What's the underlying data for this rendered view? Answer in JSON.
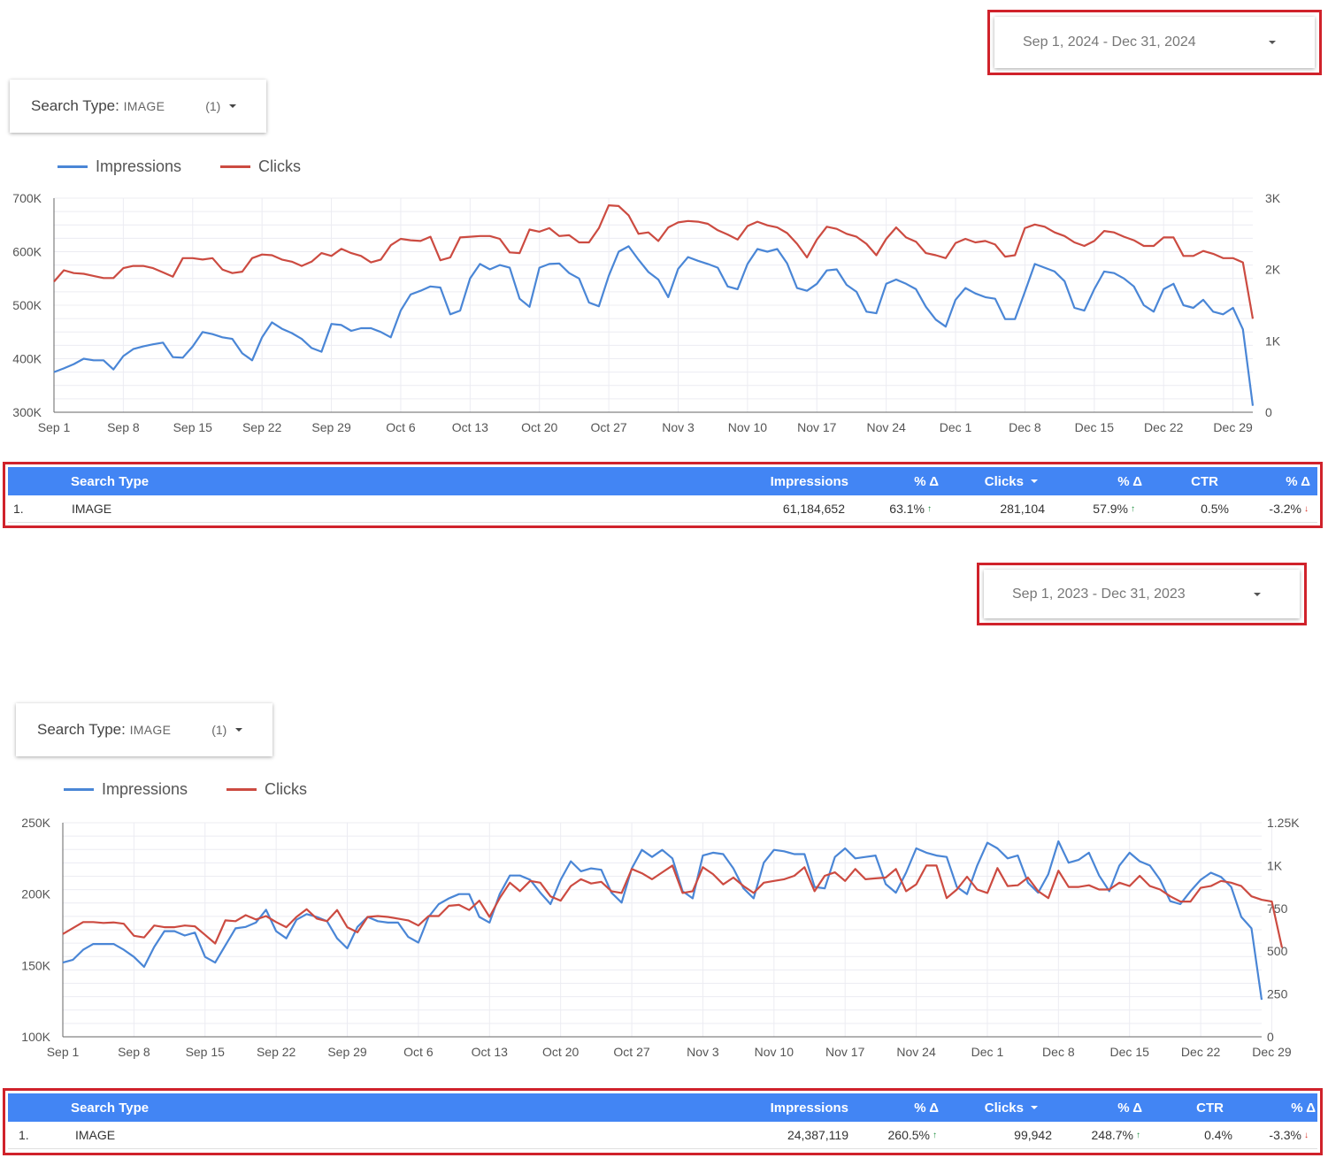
{
  "panels": [
    {
      "date_range": "Sep 1, 2024 - Dec 31, 2024",
      "filter": {
        "label": "Search Type",
        "value": "IMAGE",
        "count": "(1)"
      },
      "legend": [
        {
          "name": "Impressions",
          "color": "#4a86d6"
        },
        {
          "name": "Clicks",
          "color": "#cc4b41"
        }
      ],
      "table": {
        "headers": {
          "search_type": "Search Type",
          "impressions": "Impressions",
          "imp_delta": "% Δ",
          "clicks": "Clicks",
          "clicks_delta": "% Δ",
          "ctr": "CTR",
          "ctr_delta": "% Δ"
        },
        "row": {
          "index": "1.",
          "search_type": "IMAGE",
          "impressions": "61,184,652",
          "imp_delta": "63.1%",
          "clicks": "281,104",
          "clicks_delta": "57.9%",
          "ctr": "0.5%",
          "ctr_delta": "-3.2%"
        }
      }
    },
    {
      "date_range": "Sep 1, 2023 - Dec 31, 2023",
      "filter": {
        "label": "Search Type",
        "value": "IMAGE",
        "count": "(1)"
      },
      "legend": [
        {
          "name": "Impressions",
          "color": "#4a86d6"
        },
        {
          "name": "Clicks",
          "color": "#cc4b41"
        }
      ],
      "table": {
        "headers": {
          "search_type": "Search Type",
          "impressions": "Impressions",
          "imp_delta": "% Δ",
          "clicks": "Clicks",
          "clicks_delta": "% Δ",
          "ctr": "CTR",
          "ctr_delta": "% Δ"
        },
        "row": {
          "index": "1.",
          "search_type": "IMAGE",
          "impressions": "24,387,119",
          "imp_delta": "260.5%",
          "clicks": "99,942",
          "clicks_delta": "248.7%",
          "ctr": "0.4%",
          "ctr_delta": "-3.3%"
        }
      }
    }
  ],
  "chart_data": [
    {
      "type": "line",
      "title": "",
      "x_ticks": [
        "Sep 1",
        "Sep 8",
        "Sep 15",
        "Sep 22",
        "Sep 29",
        "Oct 6",
        "Oct 13",
        "Oct 20",
        "Oct 27",
        "Nov 3",
        "Nov 10",
        "Nov 17",
        "Nov 24",
        "Dec 1",
        "Dec 8",
        "Dec 15",
        "Dec 22",
        "Dec 29"
      ],
      "y_left": {
        "min": 300000,
        "max": 700000,
        "ticks": [
          300000,
          400000,
          500000,
          600000,
          700000
        ],
        "tick_labels": [
          "300K",
          "400K",
          "500K",
          "600K",
          "700K"
        ]
      },
      "y_right": {
        "min": 0,
        "max": 3000,
        "ticks": [
          0,
          1000,
          2000,
          3000
        ],
        "tick_labels": [
          "0",
          "1K",
          "2K",
          "3K"
        ]
      },
      "series": [
        {
          "name": "Impressions",
          "axis": "left",
          "color": "#4a86d6",
          "values": [
            375000,
            382000,
            390000,
            400000,
            397000,
            397000,
            380000,
            405000,
            418000,
            423000,
            427000,
            430000,
            403000,
            402000,
            423000,
            450000,
            446000,
            440000,
            437000,
            410000,
            397000,
            440000,
            468000,
            456000,
            448000,
            437000,
            420000,
            413000,
            465000,
            463000,
            452000,
            457000,
            457000,
            450000,
            440000,
            490000,
            520000,
            527000,
            535000,
            533000,
            483000,
            490000,
            550000,
            577000,
            567000,
            575000,
            570000,
            512000,
            497000,
            570000,
            577000,
            578000,
            560000,
            550000,
            505000,
            498000,
            555000,
            600000,
            610000,
            585000,
            562000,
            548000,
            515000,
            568000,
            590000,
            583000,
            577000,
            570000,
            535000,
            530000,
            577000,
            605000,
            600000,
            605000,
            578000,
            532000,
            527000,
            540000,
            565000,
            567000,
            538000,
            525000,
            488000,
            485000,
            540000,
            548000,
            540000,
            530000,
            497000,
            473000,
            460000,
            510000,
            532000,
            522000,
            515000,
            512000,
            474000,
            474000,
            525000,
            577000,
            570000,
            563000,
            545000,
            495000,
            490000,
            530000,
            563000,
            560000,
            550000,
            535000,
            500000,
            488000,
            530000,
            540000,
            500000,
            495000,
            510000,
            488000,
            483000,
            495000,
            455000,
            312000
          ]
        },
        {
          "name": "Clicks",
          "axis": "right",
          "color": "#cc4b41",
          "values": [
            1830,
            1990,
            1950,
            1940,
            1910,
            1880,
            1880,
            2020,
            2050,
            2050,
            2020,
            1960,
            1900,
            2160,
            2160,
            2140,
            2160,
            2000,
            1950,
            1970,
            2160,
            2210,
            2200,
            2140,
            2110,
            2050,
            2110,
            2230,
            2190,
            2290,
            2230,
            2190,
            2100,
            2140,
            2340,
            2430,
            2410,
            2400,
            2460,
            2130,
            2170,
            2450,
            2460,
            2470,
            2470,
            2430,
            2240,
            2230,
            2560,
            2530,
            2580,
            2470,
            2480,
            2380,
            2380,
            2580,
            2900,
            2890,
            2760,
            2500,
            2520,
            2400,
            2590,
            2660,
            2680,
            2670,
            2640,
            2550,
            2490,
            2420,
            2610,
            2670,
            2620,
            2590,
            2510,
            2360,
            2170,
            2420,
            2600,
            2570,
            2500,
            2460,
            2360,
            2200,
            2430,
            2590,
            2450,
            2390,
            2230,
            2200,
            2160,
            2370,
            2430,
            2380,
            2400,
            2350,
            2180,
            2200,
            2580,
            2630,
            2600,
            2520,
            2470,
            2380,
            2330,
            2400,
            2540,
            2520,
            2460,
            2410,
            2330,
            2330,
            2450,
            2450,
            2190,
            2190,
            2260,
            2220,
            2160,
            2160,
            2100,
            1310
          ]
        }
      ]
    },
    {
      "type": "line",
      "title": "",
      "x_ticks": [
        "Sep 1",
        "Sep 8",
        "Sep 15",
        "Sep 22",
        "Sep 29",
        "Oct 6",
        "Oct 13",
        "Oct 20",
        "Oct 27",
        "Nov 3",
        "Nov 10",
        "Nov 17",
        "Nov 24",
        "Dec 1",
        "Dec 8",
        "Dec 15",
        "Dec 22",
        "Dec 29"
      ],
      "y_left": {
        "min": 100000,
        "max": 250000,
        "ticks": [
          100000,
          150000,
          200000,
          250000
        ],
        "tick_labels": [
          "100K",
          "150K",
          "200K",
          "250K"
        ]
      },
      "y_right": {
        "min": 0,
        "max": 1250,
        "ticks": [
          0,
          250,
          500,
          750,
          1000,
          1250
        ],
        "tick_labels": [
          "0",
          "250",
          "500",
          "750",
          "1K",
          "1.25K"
        ]
      },
      "series": [
        {
          "name": "Impressions",
          "axis": "left",
          "color": "#4a86d6",
          "values": [
            152000,
            154000,
            161000,
            165000,
            165000,
            165000,
            161000,
            156000,
            149000,
            163000,
            174000,
            174000,
            171000,
            173000,
            156000,
            152000,
            164000,
            176000,
            177000,
            180000,
            189000,
            174000,
            169000,
            182000,
            186000,
            184000,
            181000,
            169000,
            162000,
            177000,
            184000,
            181000,
            180000,
            180000,
            170000,
            166000,
            184000,
            193000,
            197000,
            200000,
            200000,
            184000,
            180000,
            200000,
            213000,
            213000,
            210000,
            201000,
            193000,
            210000,
            223000,
            216000,
            218000,
            217000,
            201000,
            194000,
            218000,
            231000,
            226000,
            231000,
            225000,
            202000,
            197000,
            227000,
            229000,
            228000,
            218000,
            204000,
            197000,
            222000,
            231000,
            230000,
            228000,
            228000,
            205000,
            204000,
            226000,
            232000,
            225000,
            226000,
            227000,
            207000,
            201000,
            215000,
            232000,
            229000,
            227000,
            226000,
            205000,
            200000,
            220000,
            236000,
            232000,
            225000,
            227000,
            208000,
            201000,
            214000,
            237000,
            222000,
            224000,
            229000,
            213000,
            202000,
            220000,
            229000,
            223000,
            220000,
            210000,
            195000,
            193000,
            202000,
            210000,
            215000,
            212000,
            205000,
            184000,
            176000,
            126000
          ]
        },
        {
          "name": "Clicks",
          "axis": "right",
          "color": "#cc4b41",
          "values": [
            600,
            635,
            670,
            670,
            665,
            668,
            660,
            590,
            580,
            650,
            640,
            640,
            650,
            645,
            595,
            545,
            680,
            675,
            710,
            685,
            705,
            670,
            640,
            700,
            745,
            690,
            675,
            740,
            640,
            610,
            700,
            705,
            700,
            690,
            680,
            650,
            705,
            705,
            765,
            770,
            740,
            795,
            700,
            810,
            900,
            850,
            910,
            900,
            820,
            795,
            880,
            920,
            895,
            905,
            850,
            840,
            980,
            955,
            920,
            960,
            1000,
            840,
            850,
            990,
            950,
            890,
            930,
            880,
            840,
            900,
            910,
            920,
            940,
            990,
            850,
            940,
            960,
            910,
            980,
            920,
            925,
            930,
            980,
            850,
            890,
            1000,
            1000,
            810,
            860,
            935,
            860,
            840,
            985,
            880,
            885,
            930,
            850,
            810,
            970,
            875,
            875,
            885,
            860,
            860,
            900,
            880,
            940,
            880,
            860,
            820,
            790,
            790,
            870,
            880,
            910,
            900,
            880,
            820,
            800,
            790,
            520
          ]
        }
      ]
    }
  ]
}
